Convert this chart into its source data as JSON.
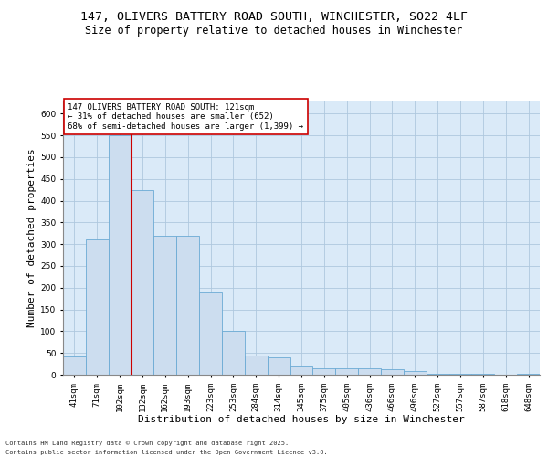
{
  "title_line1": "147, OLIVERS BATTERY ROAD SOUTH, WINCHESTER, SO22 4LF",
  "title_line2": "Size of property relative to detached houses in Winchester",
  "xlabel": "Distribution of detached houses by size in Winchester",
  "ylabel": "Number of detached properties",
  "bar_color": "#ccddef",
  "bar_edge_color": "#6aaad4",
  "grid_color": "#aec8de",
  "background_color": "#daeaf8",
  "marker_color": "#cc0000",
  "categories": [
    "41sqm",
    "71sqm",
    "102sqm",
    "132sqm",
    "162sqm",
    "193sqm",
    "223sqm",
    "253sqm",
    "284sqm",
    "314sqm",
    "345sqm",
    "375sqm",
    "405sqm",
    "436sqm",
    "466sqm",
    "496sqm",
    "527sqm",
    "557sqm",
    "587sqm",
    "618sqm",
    "648sqm"
  ],
  "values": [
    42,
    310,
    550,
    425,
    320,
    320,
    190,
    100,
    45,
    40,
    20,
    15,
    15,
    15,
    12,
    8,
    2,
    2,
    2,
    0,
    2
  ],
  "property_bin_index": 2,
  "red_line_x": 2.5,
  "annotation_text": "147 OLIVERS BATTERY ROAD SOUTH: 121sqm\n← 31% of detached houses are smaller (652)\n68% of semi-detached houses are larger (1,399) →",
  "footnote1": "Contains HM Land Registry data © Crown copyright and database right 2025.",
  "footnote2": "Contains public sector information licensed under the Open Government Licence v3.0.",
  "ylim": [
    0,
    630
  ],
  "yticks": [
    0,
    50,
    100,
    150,
    200,
    250,
    300,
    350,
    400,
    450,
    500,
    550,
    600
  ],
  "title_fontsize": 9.5,
  "subtitle_fontsize": 8.5,
  "tick_fontsize": 6.5,
  "label_fontsize": 8,
  "annot_fontsize": 6.5,
  "footnote_fontsize": 5.0
}
